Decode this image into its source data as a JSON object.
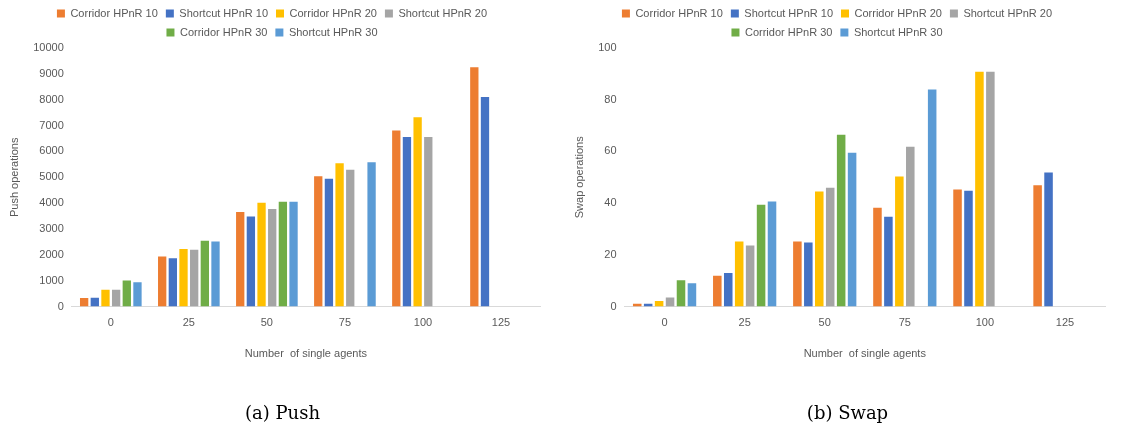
{
  "chart_data": [
    {
      "type": "bar",
      "title": "(a) Push",
      "xlabel": "Number  of single agents",
      "ylabel": "Push operations",
      "categories": [
        "0",
        "25",
        "50",
        "75",
        "100",
        "125"
      ],
      "ylim": [
        0,
        10000
      ],
      "yticks": [
        0,
        1000,
        2000,
        3000,
        4000,
        5000,
        6000,
        7000,
        8000,
        9000,
        10000
      ],
      "grid": false,
      "legend": "top",
      "series": [
        {
          "name": "Corridor HPnR 10",
          "color": "#ed7d31",
          "values": [
            330,
            1940,
            3660,
            5040,
            6810,
            9260
          ]
        },
        {
          "name": "Shortcut HPnR 10",
          "color": "#4472c4",
          "values": [
            340,
            1870,
            3480,
            4940,
            6560,
            8110
          ]
        },
        {
          "name": "Corridor HPnR 20",
          "color": "#ffc000",
          "values": [
            650,
            2230,
            4020,
            5540,
            7320,
            null
          ]
        },
        {
          "name": "Shortcut HPnR 20",
          "color": "#a5a5a5",
          "values": [
            650,
            2200,
            3770,
            5290,
            6560,
            null
          ]
        },
        {
          "name": "Corridor HPnR 30",
          "color": "#70ad47",
          "values": [
            1010,
            2550,
            4050,
            null,
            null,
            null
          ]
        },
        {
          "name": "Shortcut HPnR 30",
          "color": "#5b9bd5",
          "values": [
            940,
            2520,
            4050,
            5580,
            null,
            null
          ]
        }
      ]
    },
    {
      "type": "bar",
      "title": "(b) Swap",
      "xlabel": "Number  of single agents",
      "ylabel": "Swap operations",
      "categories": [
        "0",
        "25",
        "50",
        "75",
        "100",
        "125"
      ],
      "ylim": [
        0,
        100
      ],
      "yticks": [
        0,
        20,
        40,
        60,
        80,
        100
      ],
      "grid": false,
      "legend": "top",
      "series": [
        {
          "name": "Corridor HPnR 10",
          "color": "#ed7d31",
          "values": [
            1.1,
            11.9,
            25.2,
            38.2,
            45.3,
            46.9
          ]
        },
        {
          "name": "Shortcut HPnR 10",
          "color": "#4472c4",
          "values": [
            1.1,
            13.0,
            24.8,
            34.7,
            44.8,
            51.9
          ]
        },
        {
          "name": "Corridor HPnR 20",
          "color": "#ffc000",
          "values": [
            2.2,
            25.2,
            44.5,
            50.3,
            90.8,
            null
          ]
        },
        {
          "name": "Shortcut HPnR 20",
          "color": "#a5a5a5",
          "values": [
            3.5,
            23.6,
            46.0,
            61.8,
            90.8,
            null
          ]
        },
        {
          "name": "Corridor HPnR 30",
          "color": "#70ad47",
          "values": [
            10.2,
            39.4,
            66.5,
            null,
            null,
            null
          ]
        },
        {
          "name": "Shortcut HPnR 30",
          "color": "#5b9bd5",
          "values": [
            9.0,
            40.6,
            59.5,
            84.0,
            null,
            null
          ]
        }
      ]
    }
  ]
}
